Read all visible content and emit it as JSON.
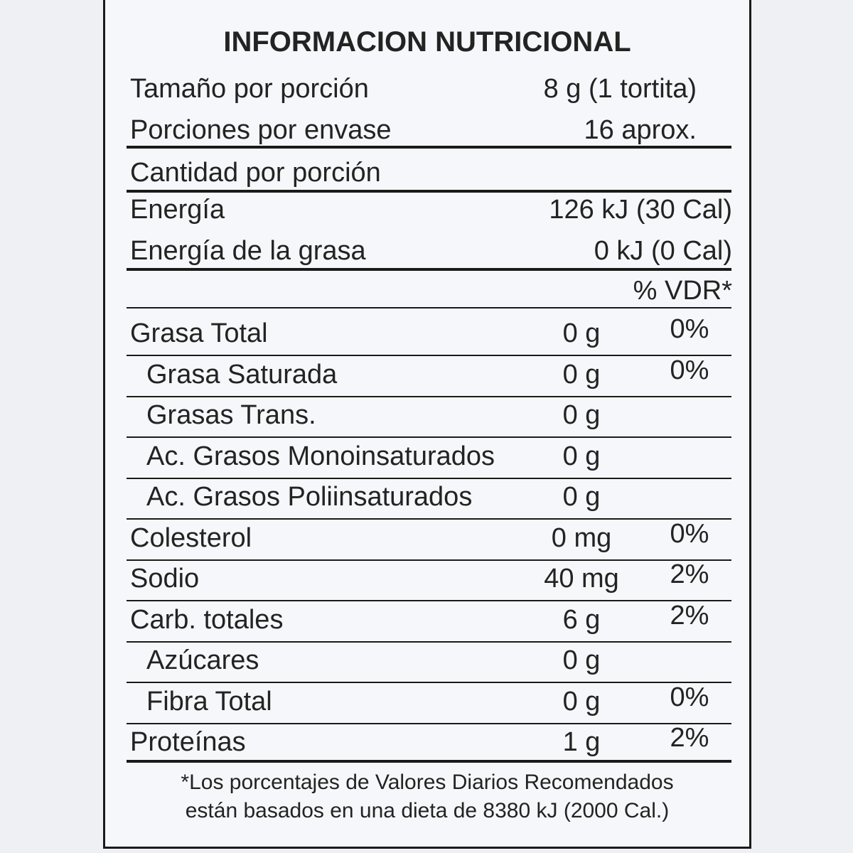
{
  "title": "INFORMACION NUTRICIONAL",
  "serving": [
    {
      "label": "Tamaño por porción",
      "value": "8 g (1 tortita)"
    },
    {
      "label": "Porciones por envase",
      "value": "16 aprox."
    }
  ],
  "amount_header": "Cantidad por porción",
  "energy": [
    {
      "label": "Energía",
      "value": "126 kJ (30 Cal)"
    },
    {
      "label": "Energía de la grasa",
      "value": "0 kJ (0 Cal)"
    }
  ],
  "vdr_header": "% VDR*",
  "nutrients": [
    {
      "name": "Grasa Total",
      "amount": "0 g",
      "vdr": "0%",
      "items": [
        {
          "name": "Grasa Saturada",
          "amount": "0 g",
          "vdr": "0%"
        },
        {
          "name": "Grasas Trans.",
          "amount": "0 g"
        },
        {
          "name": "Ac. Grasos Monoinsaturados",
          "amount": "0 g"
        },
        {
          "name": "Ac. Grasos Poliinsaturados",
          "amount": "0 g"
        }
      ]
    },
    {
      "name": "Colesterol",
      "amount": "0 mg",
      "vdr": "0%"
    },
    {
      "name": "Sodio",
      "amount": "40 mg",
      "vdr": "2%"
    },
    {
      "name": "Carb. totales",
      "amount": "6 g",
      "vdr": "2%",
      "items": [
        {
          "name": "Azúcares",
          "amount": "0 g"
        },
        {
          "name": "Fibra Total",
          "amount": "0 g",
          "vdr": "0%"
        }
      ]
    },
    {
      "name": "Proteínas",
      "amount": "1 g",
      "vdr": "2%"
    }
  ],
  "footnote": [
    "*Los porcentajes de Valores Diarios Recomendados",
    "están basados en una dieta de 8380 kJ (2000 Cal.)"
  ]
}
